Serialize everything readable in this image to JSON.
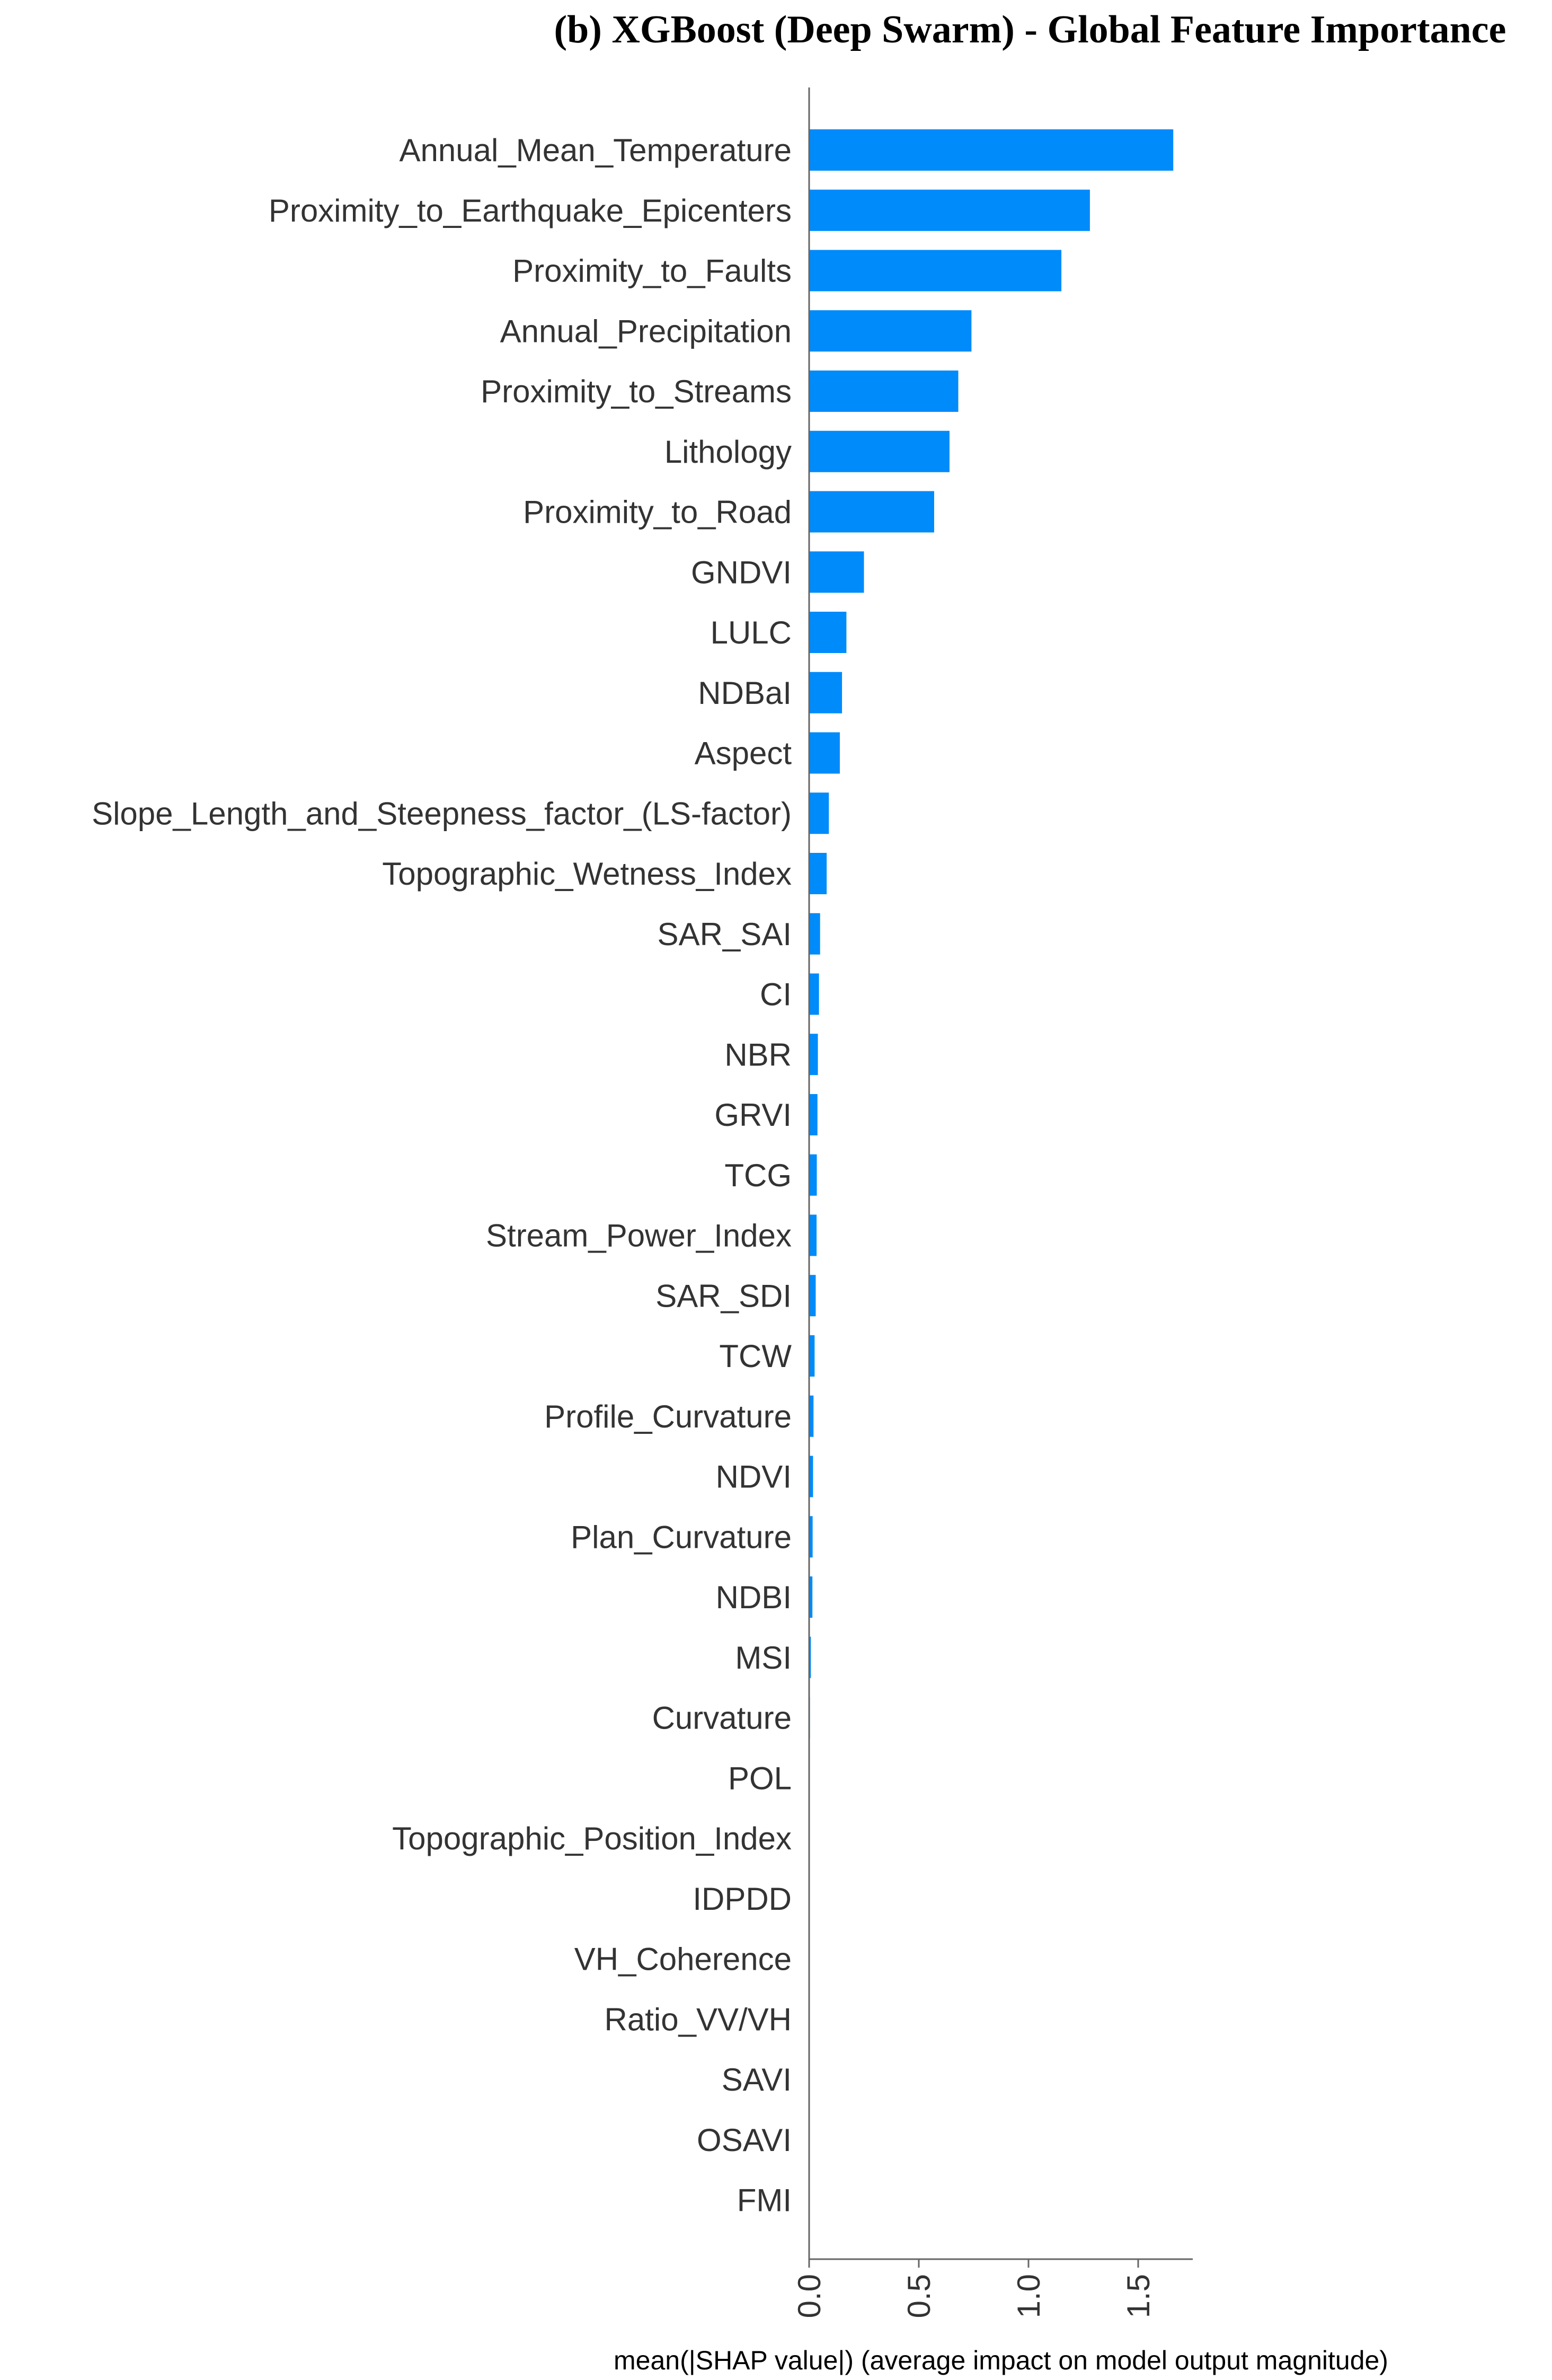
{
  "chart_data": {
    "type": "bar",
    "orientation": "horizontal",
    "title": "(b) XGBoost (Deep Swarm) - Global Feature Importance",
    "xlabel": "mean(|SHAP value|) (average impact on model output magnitude)",
    "ylabel": "",
    "xlim": [
      0,
      1.75
    ],
    "xticks": [
      "0.0",
      "0.5",
      "1.0",
      "1.5"
    ],
    "bar_color": "#008bfb",
    "grid": false,
    "categories": [
      "Annual_Mean_Temperature",
      "Proximity_to_Earthquake_Epicenters",
      "Proximity_to_Faults",
      "Annual_Precipitation",
      "Proximity_to_Streams",
      "Lithology",
      "Proximity_to_Road",
      "GNDVI",
      "LULC",
      "NDBaI",
      "Aspect",
      "Slope_Length_and_Steepness_factor_(LS-factor)",
      "Topographic_Wetness_Index",
      "SAR_SAI",
      "CI",
      "NBR",
      "GRVI",
      "TCG",
      "Stream_Power_Index",
      "SAR_SDI",
      "TCW",
      "Profile_Curvature",
      "NDVI",
      "Plan_Curvature",
      "NDBI",
      "MSI",
      "Curvature",
      "POL",
      "Topographic_Position_Index",
      "IDPDD",
      "VH_Coherence",
      "Ratio_VV/VH",
      "SAVI",
      "OSAVI",
      "FMI"
    ],
    "values": [
      1.66,
      1.28,
      1.15,
      0.74,
      0.68,
      0.64,
      0.57,
      0.25,
      0.17,
      0.15,
      0.14,
      0.09,
      0.08,
      0.05,
      0.045,
      0.04,
      0.038,
      0.035,
      0.034,
      0.03,
      0.025,
      0.02,
      0.018,
      0.016,
      0.015,
      0.008,
      0.004,
      0.003,
      0.003,
      0.002,
      0.001,
      0.0005,
      0.0003,
      0.0002,
      0.0001
    ]
  }
}
